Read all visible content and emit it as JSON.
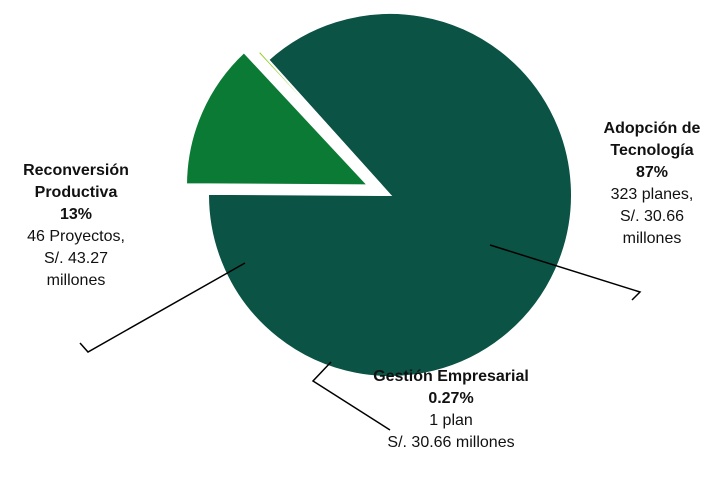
{
  "chart_data": {
    "type": "pie",
    "title": "",
    "slices": [
      {
        "name": "Adopción de Tecnología",
        "percent_label": "87%",
        "value": 87,
        "detail": [
          "323 planes,",
          "S/. 30.66",
          "millones"
        ],
        "color": "#0b5345",
        "exploded": false
      },
      {
        "name": "Reconversión Productiva",
        "percent_label": "13%",
        "value": 13,
        "detail": [
          "46 Proyectos,",
          "S/. 43.27",
          "millones"
        ],
        "color": "#0a7a34",
        "exploded": true
      },
      {
        "name": "Gestión Empresarial",
        "percent_label": "0.27%",
        "value": 0.27,
        "detail": [
          "1 plan",
          "S/. 30.66 millones"
        ],
        "color": "#8ccc1c",
        "exploded": true
      }
    ],
    "legend": "none",
    "labels": "callouts-with-leader-lines"
  }
}
